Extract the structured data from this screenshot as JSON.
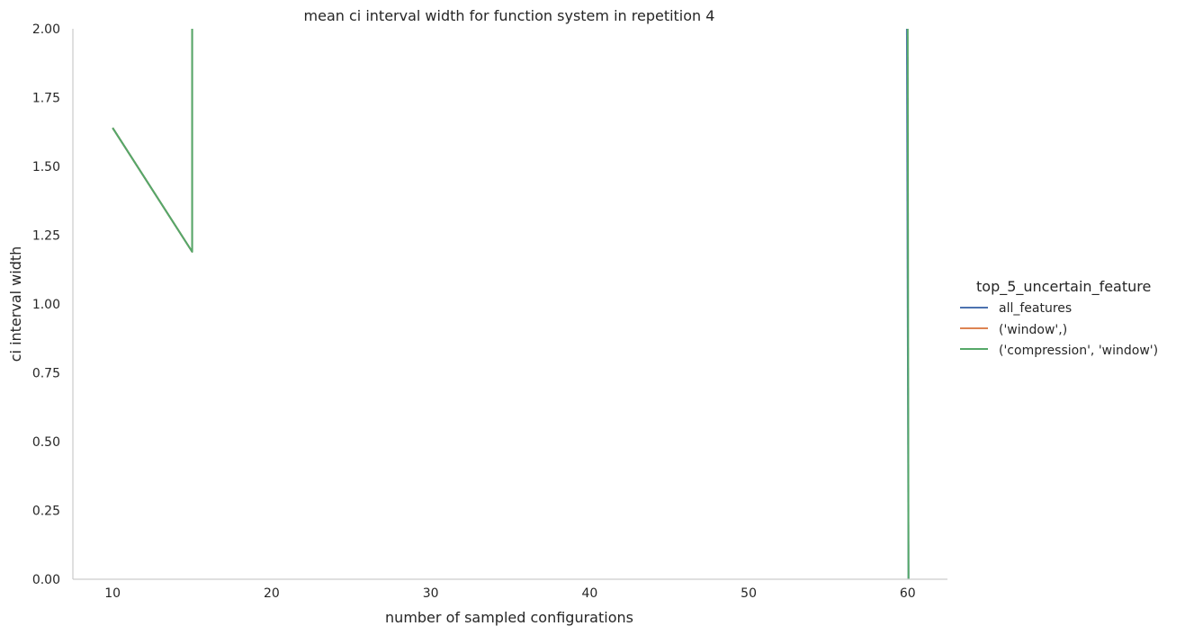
{
  "chart_data": {
    "type": "line",
    "title": "mean ci interval width for function system in repetition 4",
    "xlabel": "number of sampled configurations",
    "ylabel": "ci interval width",
    "xlim": [
      7.5,
      62.5
    ],
    "ylim": [
      0,
      2.0
    ],
    "x_ticks": [
      10,
      20,
      30,
      40,
      50,
      60
    ],
    "y_ticks": [
      "0.00",
      "0.25",
      "0.50",
      "0.75",
      "1.00",
      "1.25",
      "1.50",
      "1.75",
      "2.00"
    ],
    "grid": false,
    "legend": {
      "title": "top_5_uncertain_feature",
      "placement": "right"
    },
    "series": [
      {
        "name": "all_features",
        "color": "#4c72b0",
        "points": [
          [
            10,
            1.64
          ],
          [
            15,
            1.19
          ],
          [
            15,
            2.0
          ]
        ]
      },
      {
        "name": "('window',)",
        "color": "#dd8452",
        "points": [
          [
            10,
            1.64
          ],
          [
            15,
            1.19
          ],
          [
            15,
            2.0
          ]
        ]
      },
      {
        "name": "('compression', 'window')",
        "color": "#55a868",
        "points": [
          [
            10,
            1.64
          ],
          [
            15,
            1.19
          ],
          [
            15,
            2.0
          ]
        ]
      }
    ],
    "spikes_at_60": [
      {
        "color": "#4c72b0",
        "points": [
          [
            59.95,
            2.0
          ],
          [
            60.05,
            0.0
          ]
        ]
      },
      {
        "color": "#55a868",
        "points": [
          [
            60.0,
            2.0
          ],
          [
            60.05,
            0.0
          ]
        ]
      }
    ]
  }
}
